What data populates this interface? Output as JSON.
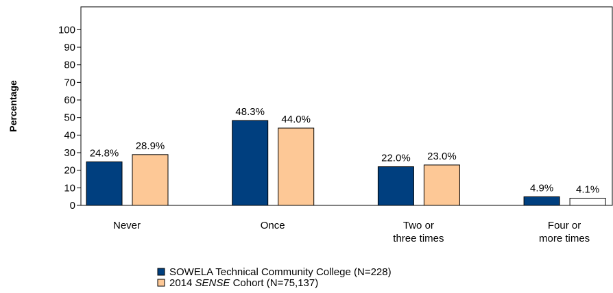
{
  "chart_data": {
    "type": "bar",
    "y_label": "Percentage",
    "categories": [
      "Never",
      "Once",
      "Two or\nthree times",
      "Four or\nmore times"
    ],
    "series": [
      {
        "name": "SOWELA Technical Community College (N=228)",
        "color": "#003f7f",
        "values": [
          24.8,
          48.3,
          22.0,
          4.9
        ],
        "value_labels": [
          "24.8%",
          "48.3%",
          "22.0%",
          "4.9%"
        ]
      },
      {
        "name": "2014 SENSE Cohort (N=75,137)",
        "italic": "SENSE",
        "color": "#fdc896",
        "colors": [
          "#fdc896",
          "#fdc896",
          "#fdc896",
          "#ffffff"
        ],
        "values": [
          28.9,
          44.0,
          23.0,
          4.1
        ],
        "value_labels": [
          "28.9%",
          "44.0%",
          "23.0%",
          "4.1%"
        ]
      }
    ],
    "ylim": [
      0,
      113
    ],
    "yticks": [
      0,
      10,
      20,
      30,
      40,
      50,
      60,
      70,
      80,
      90,
      100
    ],
    "grid": false
  }
}
